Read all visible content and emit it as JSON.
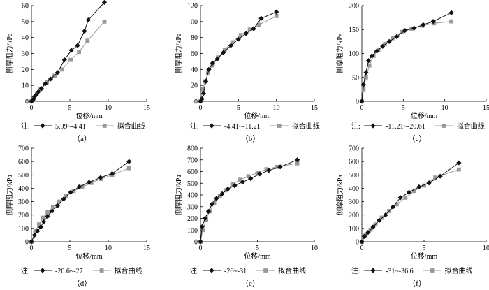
{
  "chart_data": [
    {
      "type": "line",
      "sublabel": "（a）",
      "xlabel": "位移/mm",
      "ylabel": "侧摩阻力/kPa",
      "xlim": [
        0,
        15
      ],
      "ylim": [
        0,
        60
      ],
      "xticks": [
        0,
        5,
        10,
        15
      ],
      "yticks": [
        0,
        10,
        20,
        30,
        40,
        50,
        60
      ],
      "legend_prefix": "注:",
      "series": [
        {
          "name": "5.99~-4.41",
          "marker": "diamond",
          "color": "#111111",
          "x": [
            0,
            0.2,
            0.4,
            0.6,
            0.9,
            1.3,
            1.8,
            2.5,
            3.4,
            4.3,
            5.2,
            6.0,
            6.9,
            7.4,
            9.5
          ],
          "y": [
            0,
            1,
            3,
            4,
            6,
            8,
            11,
            14,
            18,
            26,
            32,
            35,
            44,
            51,
            62
          ]
        },
        {
          "name": "拟合曲线",
          "marker": "square",
          "color": "#999999",
          "x": [
            0,
            0.3,
            0.7,
            1.2,
            2.0,
            3.0,
            4.0,
            5.1,
            6.2,
            7.3,
            9.5
          ],
          "y": [
            0,
            2,
            5,
            8,
            12,
            16,
            20,
            26,
            31,
            38,
            50
          ]
        }
      ]
    },
    {
      "type": "line",
      "sublabel": "（b）",
      "xlabel": "位移/mm",
      "ylabel": "侧摩阻力/kPa",
      "xlim": [
        0,
        15
      ],
      "ylim": [
        0,
        120
      ],
      "xticks": [
        0,
        5,
        10,
        15
      ],
      "yticks": [
        0,
        20,
        40,
        60,
        80,
        100,
        120
      ],
      "legend_prefix": "注:",
      "series": [
        {
          "name": "-4.41~-11.21",
          "marker": "diamond",
          "color": "#111111",
          "x": [
            0,
            0.2,
            0.4,
            0.7,
            1.1,
            1.6,
            2.2,
            3.0,
            4.0,
            5.0,
            6.0,
            7.0,
            8.0,
            10.0
          ],
          "y": [
            0,
            3,
            10,
            25,
            40,
            48,
            53,
            61,
            70,
            78,
            85,
            91,
            104,
            112
          ]
        },
        {
          "name": "拟合曲线",
          "marker": "square",
          "color": "#999999",
          "x": [
            0,
            0.3,
            0.6,
            1.0,
            1.6,
            2.3,
            3.2,
            4.2,
            5.3,
            6.5,
            7.7,
            10.0
          ],
          "y": [
            0,
            15,
            25,
            35,
            45,
            55,
            65,
            74,
            83,
            90,
            96,
            107
          ]
        }
      ]
    },
    {
      "type": "line",
      "sublabel": "（c）",
      "xlabel": "位移/mm",
      "ylabel": "侧摩阻力/kPa",
      "xlim": [
        0,
        15
      ],
      "ylim": [
        0,
        200
      ],
      "xticks": [
        0,
        5,
        10,
        15
      ],
      "yticks": [
        0,
        50,
        100,
        150,
        200
      ],
      "legend_prefix": "注:",
      "series": [
        {
          "name": "-11.21~-20.61",
          "marker": "diamond",
          "color": "#111111",
          "x": [
            0,
            0.2,
            0.5,
            0.8,
            1.2,
            1.8,
            2.5,
            3.3,
            4.2,
            5.2,
            6.3,
            7.4,
            8.6,
            10.8
          ],
          "y": [
            0,
            35,
            60,
            85,
            95,
            105,
            115,
            125,
            135,
            148,
            153,
            160,
            167,
            185
          ]
        },
        {
          "name": "拟合曲线",
          "marker": "square",
          "color": "#999999",
          "x": [
            0,
            0.2,
            0.5,
            0.9,
            1.4,
            2.0,
            2.8,
            3.7,
            4.8,
            6.0,
            7.3,
            8.7,
            10.8
          ],
          "y": [
            0,
            25,
            50,
            75,
            95,
            108,
            120,
            132,
            145,
            152,
            158,
            163,
            167
          ]
        }
      ]
    },
    {
      "type": "line",
      "sublabel": "（d）",
      "xlabel": "位移/mm",
      "ylabel": "侧摩阻力/kPa",
      "xlim": [
        0,
        15
      ],
      "ylim": [
        0,
        700
      ],
      "xticks": [
        0,
        5,
        10,
        15
      ],
      "yticks": [
        0,
        100,
        200,
        300,
        400,
        500,
        600,
        700
      ],
      "legend_prefix": "注:",
      "series": [
        {
          "name": "-20.6~-27",
          "marker": "diamond",
          "color": "#111111",
          "x": [
            0,
            0.4,
            0.8,
            1.2,
            1.6,
            2.1,
            2.7,
            3.4,
            4.2,
            5.1,
            6.2,
            7.5,
            9.0,
            10.5,
            12.7
          ],
          "y": [
            0,
            50,
            80,
            110,
            150,
            190,
            230,
            270,
            320,
            370,
            410,
            445,
            480,
            510,
            600
          ]
        },
        {
          "name": "拟合曲线",
          "marker": "square",
          "color": "#999999",
          "x": [
            0,
            0.5,
            1.0,
            1.5,
            2.1,
            2.8,
            3.6,
            4.5,
            5.5,
            6.6,
            7.8,
            9.1,
            10.5,
            12.7
          ],
          "y": [
            0,
            80,
            130,
            180,
            220,
            260,
            300,
            340,
            380,
            410,
            440,
            470,
            500,
            550
          ]
        }
      ]
    },
    {
      "type": "line",
      "sublabel": "（e）",
      "xlabel": "位移/mm",
      "ylabel": "侧摩阻力/kPa",
      "xlim": [
        0,
        10
      ],
      "ylim": [
        0,
        800
      ],
      "xticks": [
        0,
        5,
        10
      ],
      "yticks": [
        0,
        100,
        200,
        300,
        400,
        500,
        600,
        700,
        800
      ],
      "legend_prefix": "注:",
      "series": [
        {
          "name": "-26~-31",
          "marker": "diamond",
          "color": "#111111",
          "x": [
            0,
            0.15,
            0.4,
            0.7,
            1.0,
            1.4,
            1.9,
            2.4,
            3.0,
            3.7,
            4.4,
            5.2,
            6.0,
            7.0,
            8.5
          ],
          "y": [
            0,
            130,
            200,
            260,
            320,
            370,
            410,
            450,
            480,
            510,
            540,
            580,
            610,
            640,
            700
          ]
        },
        {
          "name": "拟合曲线",
          "marker": "square",
          "color": "#999999",
          "x": [
            0,
            0.2,
            0.5,
            0.8,
            1.2,
            1.7,
            2.2,
            2.8,
            3.5,
            4.2,
            5.0,
            5.8,
            6.7,
            8.5
          ],
          "y": [
            0,
            100,
            190,
            260,
            330,
            390,
            440,
            490,
            530,
            560,
            590,
            620,
            640,
            670
          ]
        }
      ]
    },
    {
      "type": "line",
      "sublabel": "（f）",
      "xlabel": "位移/mm",
      "ylabel": "侧摩阻力/kPa",
      "xlim": [
        0,
        10
      ],
      "ylim": [
        0,
        700
      ],
      "xticks": [
        0,
        5,
        10
      ],
      "yticks": [
        0,
        100,
        200,
        300,
        400,
        500,
        600,
        700
      ],
      "legend_prefix": "注:",
      "series": [
        {
          "name": "-31~-36.6",
          "marker": "diamond",
          "color": "#111111",
          "x": [
            0,
            0.2,
            0.5,
            0.9,
            1.4,
            1.9,
            2.5,
            3.1,
            3.8,
            4.6,
            5.4,
            6.3,
            7.8
          ],
          "y": [
            0,
            40,
            70,
            110,
            160,
            200,
            260,
            330,
            370,
            410,
            440,
            490,
            590
          ]
        },
        {
          "name": "拟合曲线",
          "marker": "square",
          "color": "#999999",
          "x": [
            0,
            0.3,
            0.7,
            1.1,
            1.6,
            2.2,
            2.8,
            3.5,
            4.2,
            5.0,
            5.9,
            7.8
          ],
          "y": [
            0,
            50,
            90,
            130,
            180,
            230,
            280,
            330,
            380,
            420,
            480,
            540
          ]
        }
      ]
    }
  ]
}
